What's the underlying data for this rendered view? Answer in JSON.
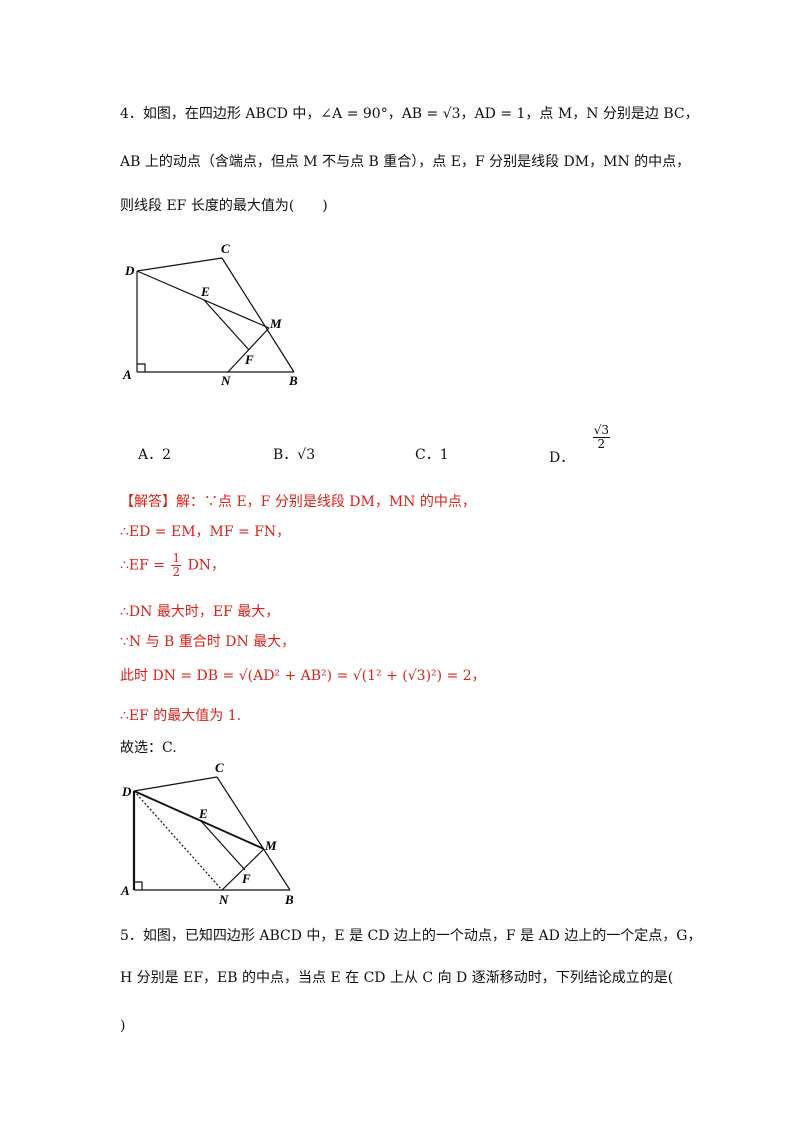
{
  "q4": {
    "line1": "4．如图，在四边形 ABCD 中，∠A = 90°，AB = √3，AD = 1，点 M，N 分别是边 BC，",
    "line2": "AB 上的动点（含端点，但点 M 不与点 B 重合），点 E，F 分别是线段 DM，MN 的中点，",
    "line3": "则线段 EF 长度的最大值为(　　)",
    "options": {
      "a": "A．2",
      "b": "B．√3",
      "c": "C．1",
      "d_label": "D．",
      "d_num": "√3",
      "d_den": "2"
    }
  },
  "figure_labels": {
    "A": "A",
    "B": "B",
    "C": "C",
    "D": "D",
    "E": "E",
    "F": "F",
    "M": "M",
    "N": "N"
  },
  "solution": {
    "tag": "【解答】",
    "l1": "解：∵点 E，F 分别是线段 DM，MN 的中点，",
    "l2": "∴ED = EM，MF = FN，",
    "l3_pre": "∴EF =",
    "l3_num": "1",
    "l3_den": "2",
    "l3_post": "DN，",
    "l4": "∴DN 最大时，EF 最大，",
    "l5": "∵N 与 B 重合时 DN 最大，",
    "l6": "此时 DN = DB = √(AD² + AB²) = √(1² + (√3)²) = 2，",
    "l7": "∴EF 的最大值为 1.",
    "l8": "故选：C."
  },
  "q5": {
    "line1": "5．如图，已知四边形 ABCD 中，E 是 CD 边上的一个动点，F 是 AD 边上的一个定点，G，",
    "line2": "H 分别是 EF，EB 的中点，当点 E 在 CD 上从 C 向 D 逐渐移动时，下列结论成立的是(",
    "line3": ")"
  }
}
